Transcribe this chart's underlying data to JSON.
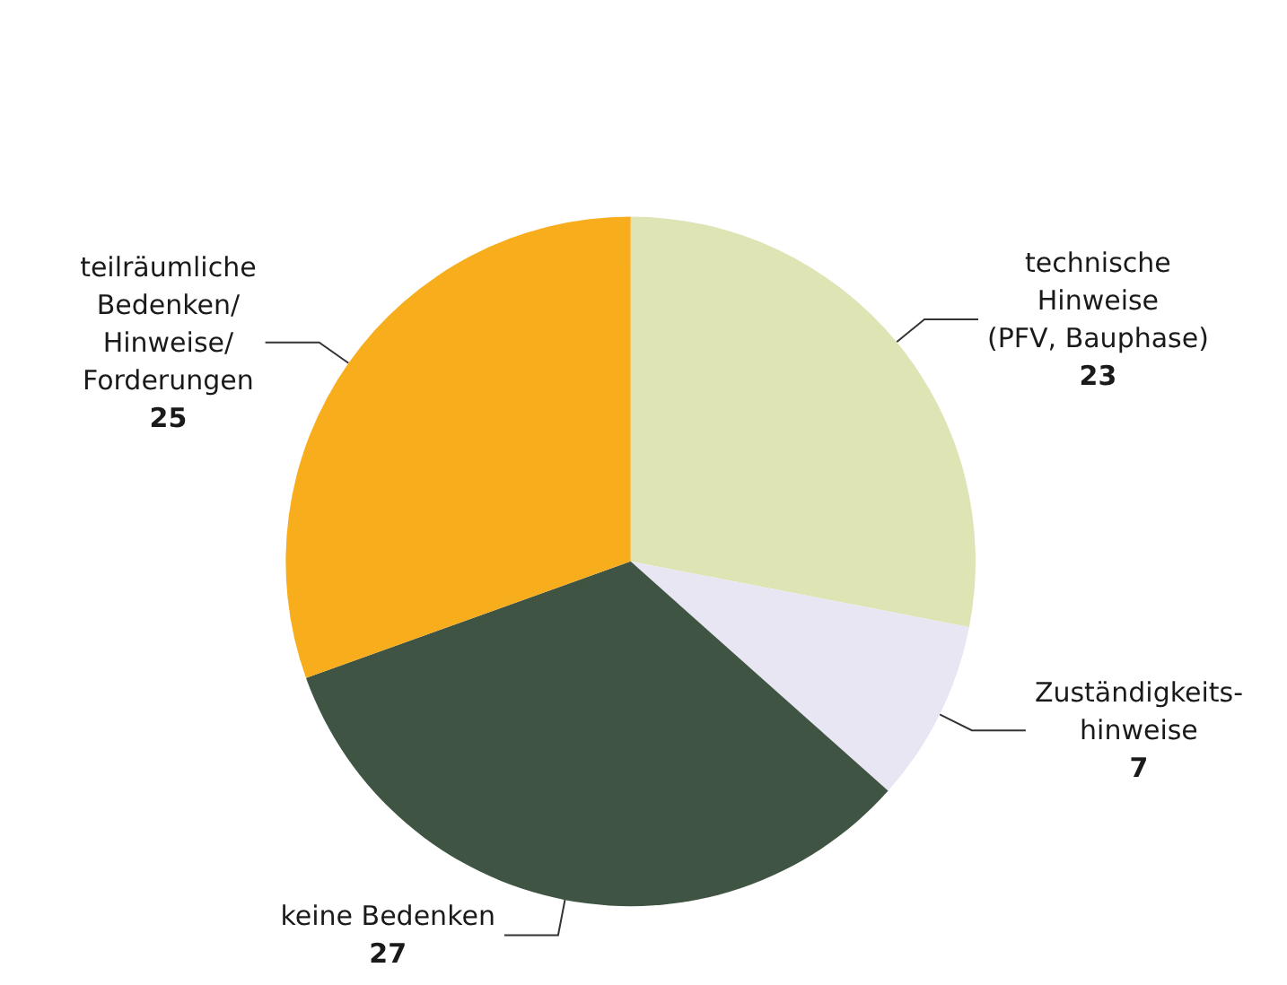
{
  "chart_data": {
    "type": "pie",
    "categories": [
      "technische\nHinweise\n(PFV, Bauphase)",
      "Zuständigkeits-\nhinweise",
      "keine Bedenken",
      "teilräumliche\nBedenken/\nHinweise/\nForderungen"
    ],
    "values": [
      23,
      7,
      27,
      25
    ],
    "colors": [
      "#dfe4b4",
      "#e9e6f3",
      "#3f5443",
      "#f8ad1d"
    ],
    "data_labels": true,
    "legend": false
  }
}
